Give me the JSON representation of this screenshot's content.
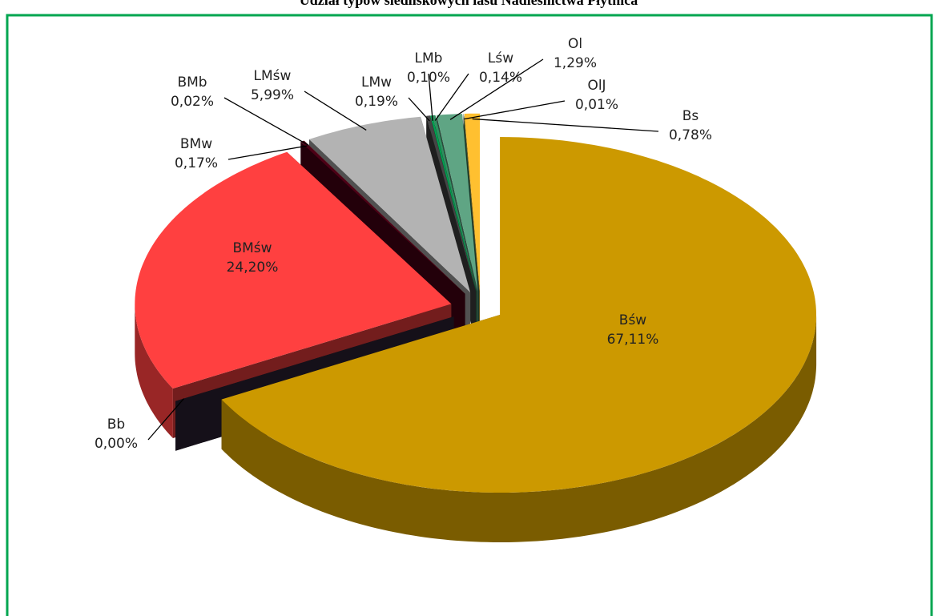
{
  "chart_data": {
    "type": "pie3d",
    "title": "Udział typów siedliskowych lasu Nadleśnictwa Płytnica",
    "categories": [
      "Bśw",
      "Bb",
      "BMśw",
      "BMw",
      "BMb",
      "LMśw",
      "LMw",
      "LMb",
      "Lśw",
      "Ol",
      "OlJ",
      "Bs"
    ],
    "values": [
      67.11,
      0.0,
      24.2,
      0.17,
      0.02,
      5.99,
      0.19,
      0.1,
      0.14,
      1.29,
      0.01,
      0.78
    ],
    "value_labels": [
      "67,11%",
      "0,00%",
      "24,20%",
      "0,17%",
      "0,02%",
      "5,99%",
      "0,19%",
      "0,10%",
      "0,14%",
      "1,29%",
      "0,01%",
      "0,78%"
    ],
    "colors": [
      "#cc9900",
      "#2e2438",
      "#ff4040",
      "#4d0016",
      "#7a1a2a",
      "#b3b3b3",
      "#454545",
      "#00a050",
      "#2f8f5f",
      "#5fa584",
      "#3a7a5a",
      "#ffc030"
    ]
  }
}
